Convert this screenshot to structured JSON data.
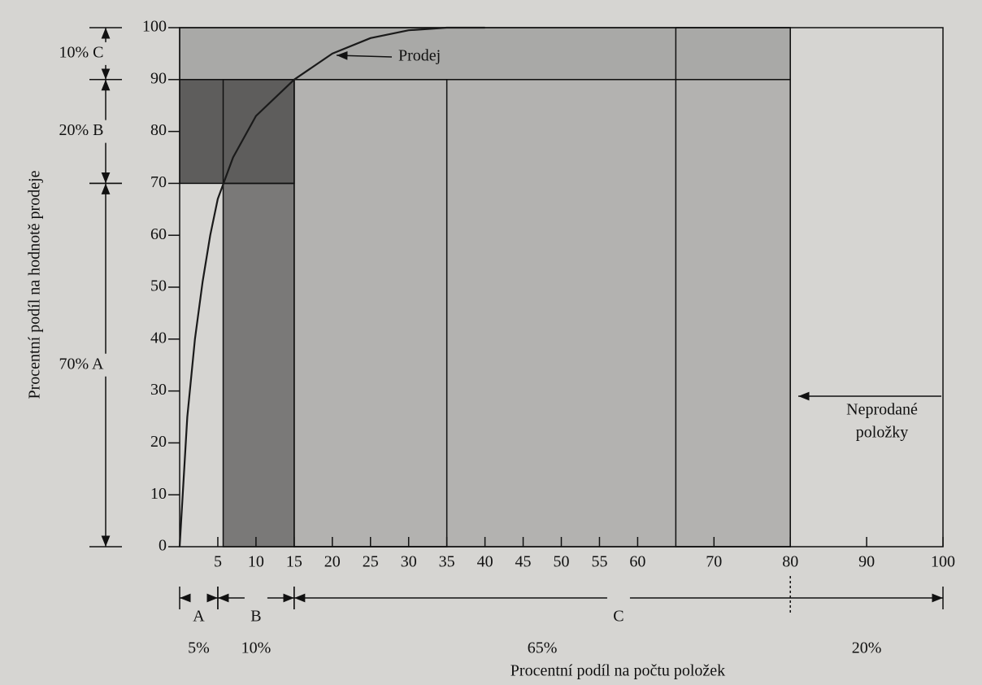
{
  "chart_data": {
    "type": "line",
    "x_label": "Procentní podíl na počtu položek",
    "y_label": "Procentní podíl na hodnotě prodeje",
    "xlim": [
      0,
      100
    ],
    "ylim": [
      0,
      100
    ],
    "xticks": [
      5,
      10,
      15,
      20,
      25,
      30,
      35,
      40,
      45,
      50,
      55,
      60,
      70,
      80,
      90,
      100
    ],
    "yticks": [
      0,
      10,
      20,
      30,
      40,
      50,
      60,
      70,
      80,
      90,
      100
    ],
    "x": [
      0,
      1,
      2,
      3,
      4,
      5,
      7,
      10,
      15,
      20,
      25,
      30,
      35,
      40
    ],
    "series": [
      {
        "name": "Prodej",
        "color": "#1a1a1a",
        "values": [
          0,
          25,
          40,
          51,
          60,
          67,
          75,
          83,
          90,
          95,
          98,
          99.5,
          100,
          100
        ]
      }
    ],
    "regions": [
      {
        "x": [
          0,
          80
        ],
        "y": [
          90,
          100
        ],
        "color": "#a9a9a7"
      },
      {
        "x": [
          15,
          80
        ],
        "y": [
          0,
          90
        ],
        "color": "#b3b2b0"
      },
      {
        "x": [
          5.7,
          15
        ],
        "y": [
          0,
          70
        ],
        "color": "#7a7978"
      },
      {
        "x": [
          0,
          15
        ],
        "y": [
          70,
          90
        ],
        "color": "#5e5d5c"
      },
      {
        "x": [
          15,
          35
        ],
        "y": [
          0,
          90
        ],
        "color": "none"
      },
      {
        "x": [
          65,
          80
        ],
        "y": [
          0,
          100
        ],
        "color": "none"
      },
      {
        "x": [
          5.7,
          15
        ],
        "y": [
          70,
          90
        ],
        "color": "none"
      }
    ],
    "y_brackets": [
      {
        "label": "10% C",
        "range": [
          90,
          100
        ]
      },
      {
        "label": "20% B",
        "range": [
          70,
          90
        ]
      },
      {
        "label": "70% A",
        "range": [
          0,
          70
        ]
      }
    ],
    "x_brackets": [
      {
        "label": "A",
        "range": [
          0,
          5
        ]
      },
      {
        "label": "B",
        "range": [
          5,
          15
        ]
      },
      {
        "label": "C",
        "range": [
          15,
          100
        ]
      }
    ],
    "shares": [
      {
        "label": "5%",
        "range": [
          0,
          5
        ]
      },
      {
        "label": "10%",
        "range": [
          5,
          15
        ]
      },
      {
        "label": "65%",
        "range": [
          15,
          80
        ]
      },
      {
        "label": "20%",
        "range": [
          80,
          100
        ]
      }
    ],
    "unsold_label": [
      "Neprodané",
      "položky"
    ]
  }
}
